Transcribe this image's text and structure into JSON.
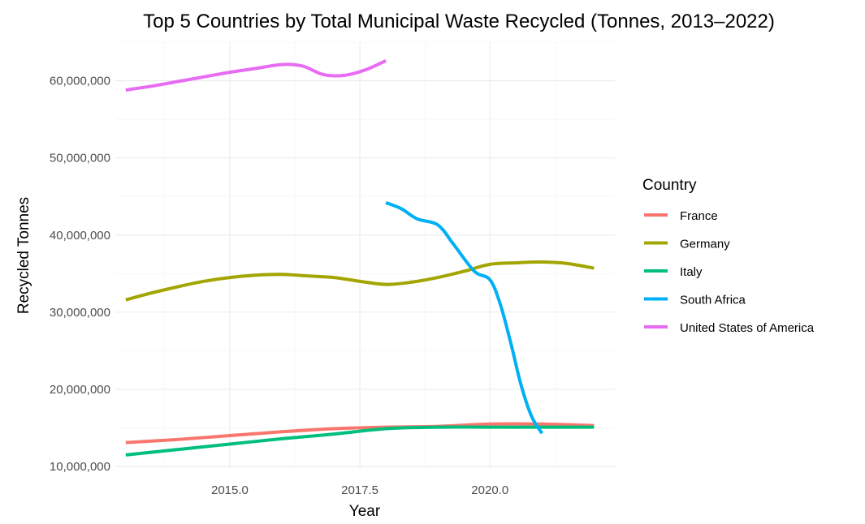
{
  "chart_data": {
    "type": "line",
    "title": "Top 5 Countries by Total Municipal Waste Recycled (Tonnes, 2013–2022)",
    "xlabel": "Year",
    "ylabel": "Recycled Tonnes",
    "xlim": [
      2012.8,
      2022.4
    ],
    "ylim": [
      9800000,
      65000000
    ],
    "x_ticks": [
      2015.0,
      2017.5,
      2020.0
    ],
    "x_tick_labels": [
      "2015.0",
      "2017.5",
      "2020.0"
    ],
    "y_ticks": [
      10000000,
      20000000,
      30000000,
      40000000,
      50000000,
      60000000
    ],
    "y_tick_labels": [
      "10,000,000",
      "20,000,000",
      "30,000,000",
      "40,000,000",
      "50,000,000",
      "60,000,000"
    ],
    "grid": true,
    "legend": {
      "title": "Country",
      "position": "right"
    },
    "series": [
      {
        "name": "France",
        "color": "#F8766D",
        "points": [
          [
            2013,
            13100000
          ],
          [
            2014,
            13500000
          ],
          [
            2015,
            14000000
          ],
          [
            2016,
            14500000
          ],
          [
            2017,
            14900000
          ],
          [
            2018,
            15100000
          ],
          [
            2019,
            15200000
          ],
          [
            2020,
            15500000
          ],
          [
            2021,
            15500000
          ],
          [
            2022,
            15300000
          ]
        ]
      },
      {
        "name": "Germany",
        "color": "#A3A500",
        "points": [
          [
            2013,
            31600000
          ],
          [
            2013.5,
            32500000
          ],
          [
            2014,
            33300000
          ],
          [
            2014.5,
            34000000
          ],
          [
            2015,
            34500000
          ],
          [
            2015.5,
            34800000
          ],
          [
            2016,
            34900000
          ],
          [
            2016.5,
            34700000
          ],
          [
            2017,
            34500000
          ],
          [
            2017.5,
            34000000
          ],
          [
            2018,
            33600000
          ],
          [
            2018.5,
            33900000
          ],
          [
            2019,
            34500000
          ],
          [
            2019.5,
            35300000
          ],
          [
            2020,
            36200000
          ],
          [
            2020.5,
            36400000
          ],
          [
            2021,
            36500000
          ],
          [
            2021.5,
            36300000
          ],
          [
            2022,
            35700000
          ]
        ]
      },
      {
        "name": "Italy",
        "color": "#00BF7D",
        "points": [
          [
            2013,
            11500000
          ],
          [
            2014,
            12200000
          ],
          [
            2015,
            12900000
          ],
          [
            2016,
            13600000
          ],
          [
            2017,
            14200000
          ],
          [
            2018,
            14900000
          ],
          [
            2019,
            15100000
          ],
          [
            2020,
            15100000
          ],
          [
            2021,
            15100000
          ],
          [
            2022,
            15100000
          ]
        ]
      },
      {
        "name": "South Africa",
        "color": "#00B0F6",
        "points": [
          [
            2018,
            44200000
          ],
          [
            2018.3,
            43400000
          ],
          [
            2018.6,
            42100000
          ],
          [
            2019,
            41300000
          ],
          [
            2019.3,
            38800000
          ],
          [
            2019.7,
            35300000
          ],
          [
            2020,
            34200000
          ],
          [
            2020.2,
            31000000
          ],
          [
            2020.4,
            26000000
          ],
          [
            2020.6,
            20500000
          ],
          [
            2020.8,
            16500000
          ],
          [
            2021,
            14300000
          ]
        ]
      },
      {
        "name": "United States of America",
        "color": "#E76BF3",
        "points": [
          [
            2013,
            58800000
          ],
          [
            2013.5,
            59300000
          ],
          [
            2014,
            59900000
          ],
          [
            2014.5,
            60500000
          ],
          [
            2015,
            61100000
          ],
          [
            2015.5,
            61600000
          ],
          [
            2016,
            62100000
          ],
          [
            2016.4,
            61900000
          ],
          [
            2016.8,
            60800000
          ],
          [
            2017.2,
            60700000
          ],
          [
            2017.6,
            61400000
          ],
          [
            2018,
            62600000
          ]
        ]
      }
    ]
  }
}
